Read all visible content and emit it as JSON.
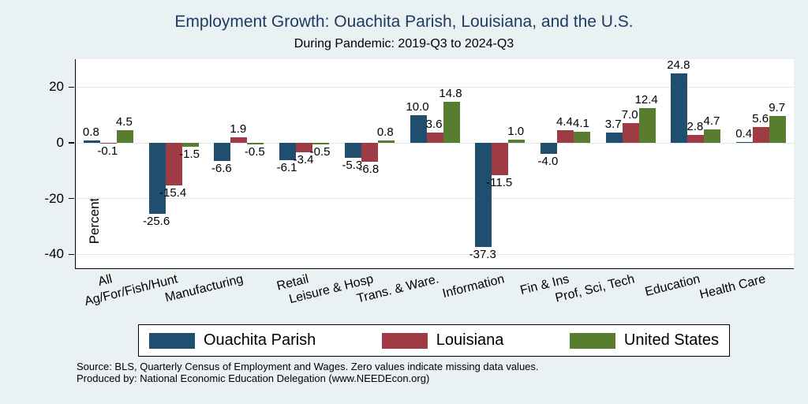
{
  "chart_data": {
    "type": "bar",
    "title": "Employment Growth: Ouachita Parish, Louisiana, and the U.S.",
    "subtitle": "During Pandemic: 2019-Q3 to 2024-Q3",
    "ylabel": "Percent",
    "xlabel": "",
    "categories": [
      "All",
      "Ag/For/Fish/Hunt",
      "Manufacturing",
      "Retail",
      "Leisure & Hosp",
      "Trans. & Ware.",
      "Information",
      "Fin & Ins",
      "Prof, Sci, Tech",
      "Education",
      "Health Care"
    ],
    "series": [
      {
        "name": "Ouachita Parish",
        "color": "#1f4e6e",
        "values": [
          0.8,
          -25.6,
          -6.6,
          -6.1,
          -5.3,
          10.0,
          -37.3,
          -4.0,
          3.7,
          24.8,
          0.4
        ]
      },
      {
        "name": "Louisiana",
        "color": "#9e3b45",
        "values": [
          -0.1,
          -15.4,
          1.9,
          -3.4,
          -6.8,
          3.6,
          -11.5,
          4.4,
          7.0,
          2.8,
          5.6
        ]
      },
      {
        "name": "United States",
        "color": "#587d2e",
        "values": [
          4.5,
          -1.5,
          -0.5,
          -0.5,
          0.8,
          14.8,
          1.0,
          4.1,
          12.4,
          4.7,
          9.7
        ]
      }
    ],
    "yticks": [
      20,
      0,
      -20,
      -40
    ],
    "ylim": [
      -45,
      30
    ],
    "grid": true,
    "legend_position": "bottom"
  },
  "footer": {
    "line1": "Source: BLS, Quarterly Census of Employment and Wages. Zero values indicate missing data values.",
    "line2": "Produced by: National Economic Education Delegation (www.NEEDEcon.org)"
  },
  "colors": {
    "background": "#e9f1f2",
    "plot_background": "#ffffff",
    "gridline": "#dfe9ec",
    "axis": "#000000",
    "title_text": "#1f3a63"
  }
}
